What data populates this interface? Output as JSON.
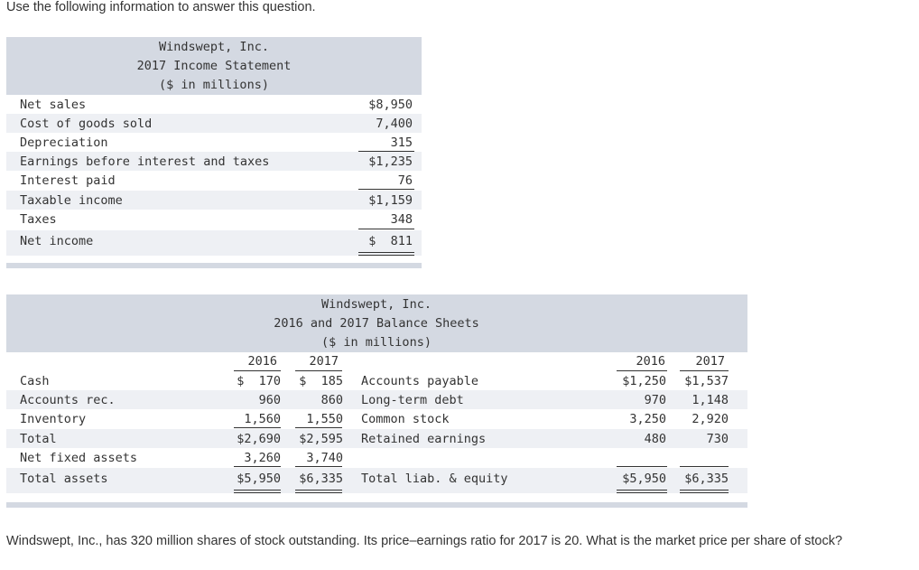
{
  "instruction": "Use the following information to answer this question.",
  "income_statement": {
    "title_lines": [
      "Windswept, Inc.",
      "2017 Income Statement",
      "($ in millions)"
    ],
    "rows": [
      {
        "label": "Net sales",
        "value": "$8,950"
      },
      {
        "label": "Cost of goods sold",
        "value": "7,400"
      },
      {
        "label": "Depreciation",
        "value": "315"
      },
      {
        "label": "Earnings before interest and taxes",
        "value": "$1,235"
      },
      {
        "label": "Interest paid",
        "value": "76"
      },
      {
        "label": "Taxable income",
        "value": "$1,159"
      },
      {
        "label": "Taxes",
        "value": "348"
      },
      {
        "label": "Net income",
        "value": "$  811"
      }
    ]
  },
  "balance_sheet": {
    "title_lines": [
      "Windswept, Inc.",
      "2016 and 2017 Balance Sheets",
      "($ in millions)"
    ],
    "years": [
      "2016",
      "2017"
    ],
    "assets": [
      {
        "label": "Cash",
        "y2016": "$  170",
        "y2017": "$  185"
      },
      {
        "label": "Accounts rec.",
        "y2016": "960",
        "y2017": "860"
      },
      {
        "label": "Inventory",
        "y2016": "1,560",
        "y2017": "1,550"
      },
      {
        "label": "Total",
        "y2016": "$2,690",
        "y2017": "$2,595"
      },
      {
        "label": "Net fixed assets",
        "y2016": "3,260",
        "y2017": "3,740"
      },
      {
        "label": "Total assets",
        "y2016": "$5,950",
        "y2017": "$6,335"
      }
    ],
    "liabilities": [
      {
        "label": "Accounts payable",
        "y2016": "$1,250",
        "y2017": "$1,537"
      },
      {
        "label": "Long-term debt",
        "y2016": "970",
        "y2017": "1,148"
      },
      {
        "label": "Common stock",
        "y2016": "3,250",
        "y2017": "2,920"
      },
      {
        "label": "Retained earnings",
        "y2016": "480",
        "y2017": "730"
      },
      {
        "label": "Total liab. & equity",
        "y2016": "$5,950",
        "y2017": "$6,335"
      }
    ]
  },
  "question": "Windswept, Inc., has 320 million shares of stock outstanding. Its price–earnings ratio for 2017 is 20. What is the market price per share of stock?"
}
